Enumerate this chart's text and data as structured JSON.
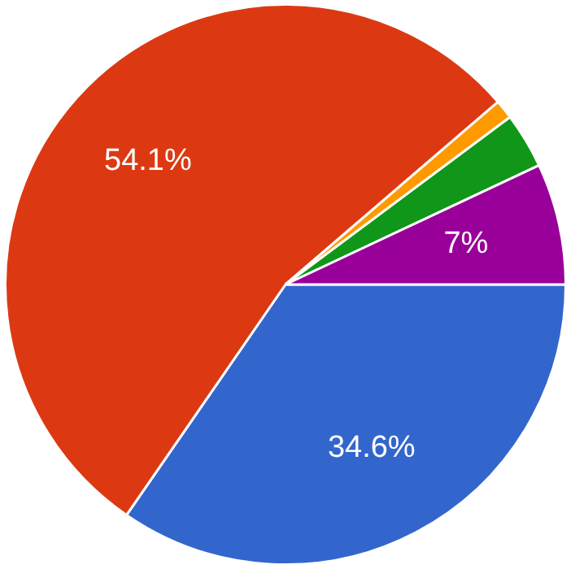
{
  "chart_data": {
    "type": "pie",
    "categories": [
      null,
      null,
      null,
      null,
      null
    ],
    "values": [
      34.6,
      54.1,
      1.1,
      3.2,
      7
    ],
    "colors": [
      "#3366cc",
      "#dc3912",
      "#ff9900",
      "#109618",
      "#990099"
    ],
    "value_labels": [
      "34.6%",
      "54.1%",
      null,
      null,
      "7%"
    ],
    "legend": false
  }
}
